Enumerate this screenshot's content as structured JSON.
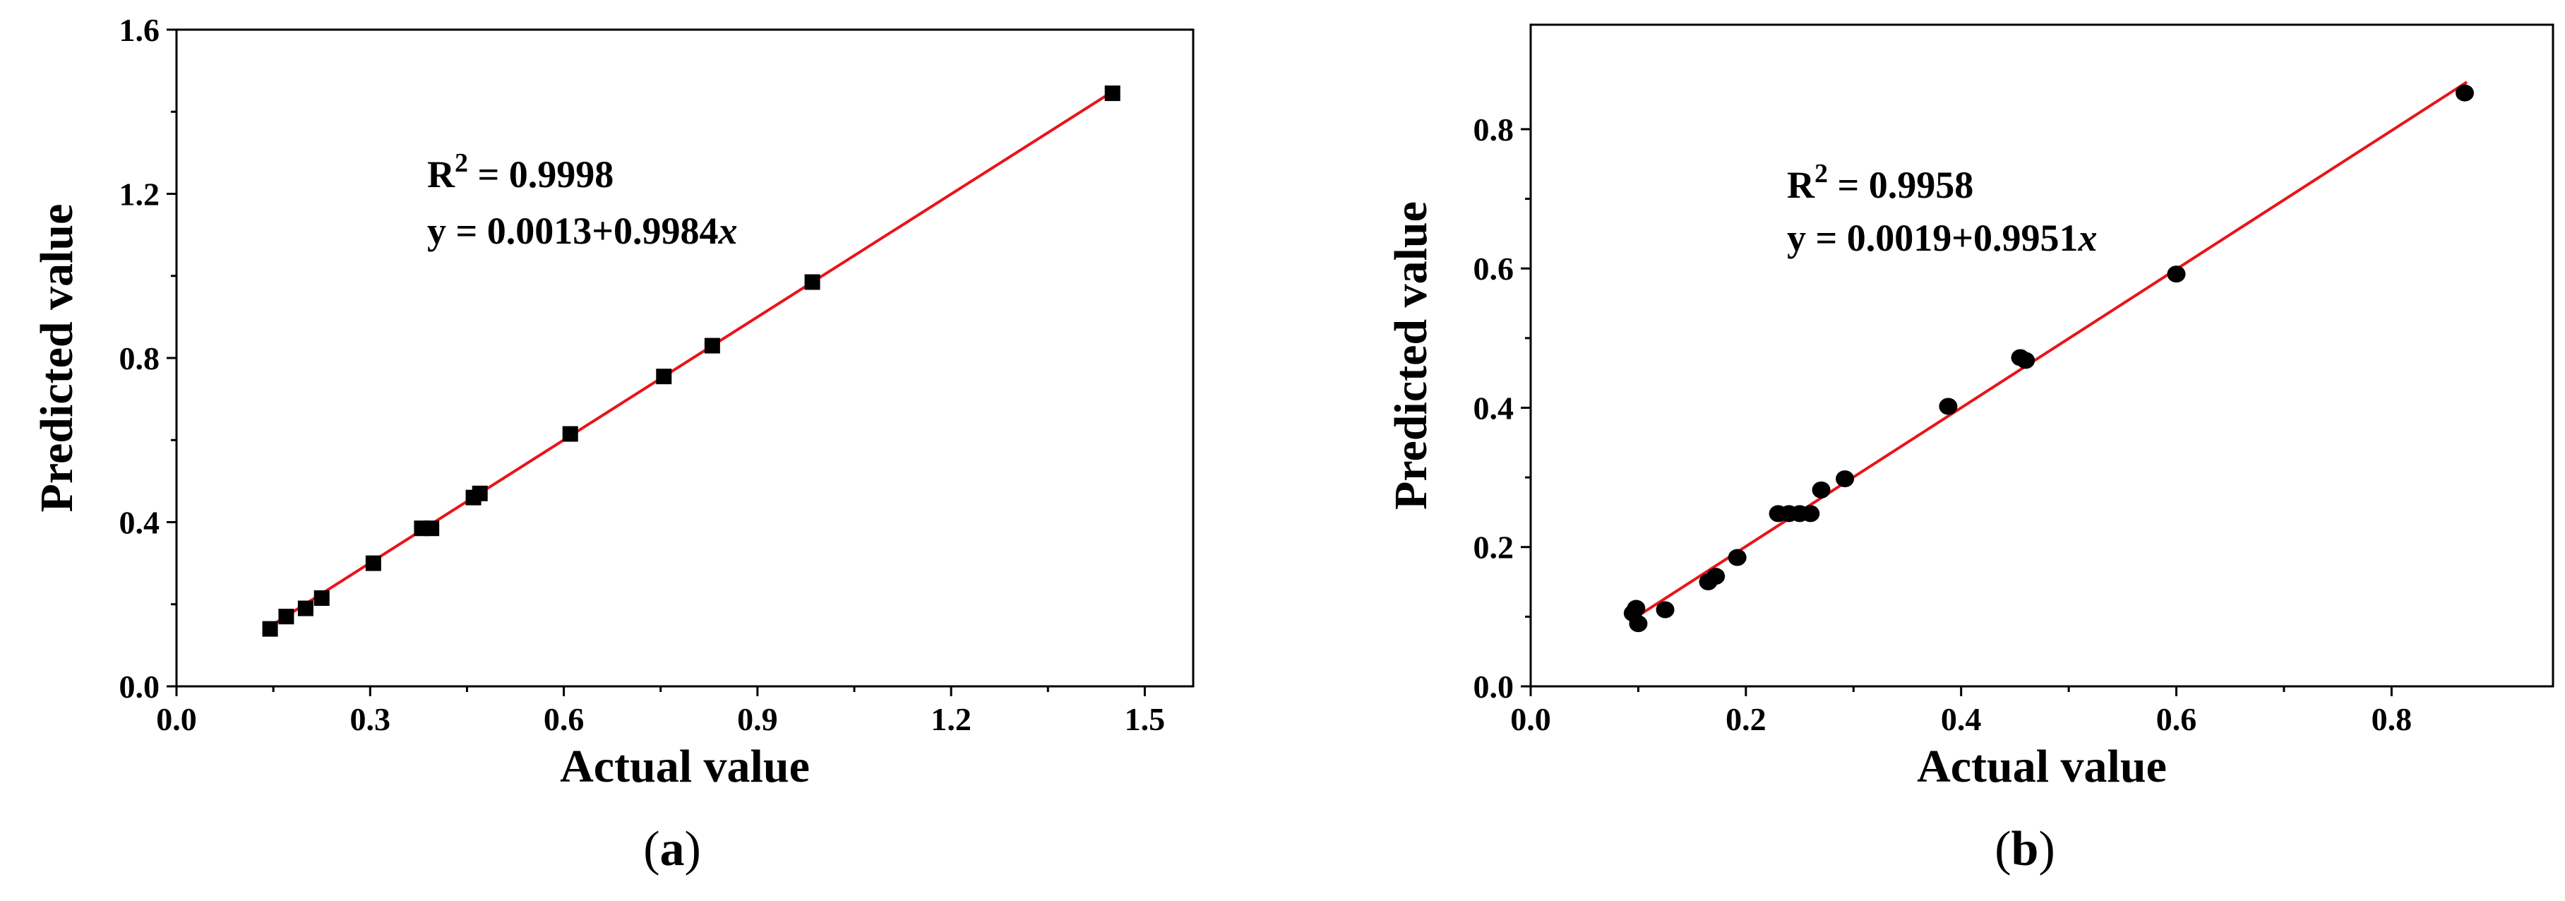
{
  "chart_data": [
    {
      "type": "scatter",
      "caption": "a",
      "xlabel": "Actual value",
      "ylabel": "Predicted value",
      "xlim": [
        0.0,
        1.575
      ],
      "ylim": [
        0.0,
        1.6
      ],
      "xticks": [
        "0.0",
        "0.3",
        "0.6",
        "0.9",
        "1.2",
        "1.5"
      ],
      "yticks": [
        "0.0",
        "0.4",
        "0.8",
        "1.2",
        "1.6"
      ],
      "marker": "square",
      "marker_color": "#000000",
      "fit_color": "#e8141a",
      "annotation": {
        "r2_prefix": "R",
        "r2_sup": "2",
        "r2_value": " = 0.9998",
        "eq_prefix": "y = 0.0013+0.9984",
        "eq_var": "x"
      },
      "fit": {
        "intercept": 0.0013,
        "slope": 0.9984,
        "x_range": [
          0.14,
          1.45
        ]
      },
      "points": [
        {
          "x": 0.145,
          "y": 0.14
        },
        {
          "x": 0.17,
          "y": 0.17
        },
        {
          "x": 0.2,
          "y": 0.19
        },
        {
          "x": 0.225,
          "y": 0.215
        },
        {
          "x": 0.305,
          "y": 0.3
        },
        {
          "x": 0.38,
          "y": 0.385
        },
        {
          "x": 0.395,
          "y": 0.385
        },
        {
          "x": 0.46,
          "y": 0.46
        },
        {
          "x": 0.47,
          "y": 0.47
        },
        {
          "x": 0.61,
          "y": 0.615
        },
        {
          "x": 0.755,
          "y": 0.755
        },
        {
          "x": 0.83,
          "y": 0.83
        },
        {
          "x": 0.985,
          "y": 0.985
        },
        {
          "x": 1.45,
          "y": 1.445
        }
      ]
    },
    {
      "type": "scatter",
      "caption": "b",
      "xlabel": "Actual value",
      "ylabel": "Predicted value",
      "xlim": [
        0.0,
        0.95
      ],
      "ylim": [
        0.0,
        0.95
      ],
      "xticks": [
        "0.0",
        "0.2",
        "0.4",
        "0.6",
        "0.8"
      ],
      "yticks": [
        "0.0",
        "0.2",
        "0.4",
        "0.6",
        "0.8"
      ],
      "marker": "circle",
      "marker_color": "#000000",
      "fit_color": "#e8141a",
      "annotation": {
        "r2_prefix": "R",
        "r2_sup": "2",
        "r2_value": " = 0.9958",
        "eq_prefix": "y = 0.0019+0.9951",
        "eq_var": "x"
      },
      "fit": {
        "intercept": 0.0019,
        "slope": 0.9951,
        "x_range": [
          0.095,
          0.87
        ]
      },
      "points": [
        {
          "x": 0.095,
          "y": 0.105
        },
        {
          "x": 0.098,
          "y": 0.112
        },
        {
          "x": 0.1,
          "y": 0.09
        },
        {
          "x": 0.125,
          "y": 0.11
        },
        {
          "x": 0.165,
          "y": 0.15
        },
        {
          "x": 0.172,
          "y": 0.158
        },
        {
          "x": 0.192,
          "y": 0.185
        },
        {
          "x": 0.23,
          "y": 0.248
        },
        {
          "x": 0.24,
          "y": 0.248
        },
        {
          "x": 0.25,
          "y": 0.248
        },
        {
          "x": 0.26,
          "y": 0.248
        },
        {
          "x": 0.27,
          "y": 0.282
        },
        {
          "x": 0.292,
          "y": 0.298
        },
        {
          "x": 0.388,
          "y": 0.402
        },
        {
          "x": 0.455,
          "y": 0.472
        },
        {
          "x": 0.46,
          "y": 0.468
        },
        {
          "x": 0.6,
          "y": 0.592
        },
        {
          "x": 0.868,
          "y": 0.852
        }
      ]
    }
  ]
}
